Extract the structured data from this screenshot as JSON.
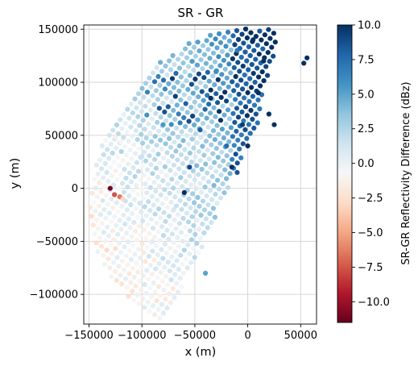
{
  "chart_data": {
    "type": "scatter",
    "title": "SR - GR",
    "xlabel": "x (m)",
    "ylabel": "y (m)",
    "xlim": [
      -155000,
      65000
    ],
    "ylim": [
      -128000,
      154000
    ],
    "xticks": [
      -150000,
      -100000,
      -50000,
      0,
      50000
    ],
    "xtick_labels": [
      "−150000",
      "−100000",
      "−50000",
      "0",
      "50000"
    ],
    "yticks": [
      -100000,
      -50000,
      0,
      50000,
      100000,
      150000
    ],
    "ytick_labels": [
      "−100000",
      "−50000",
      "0",
      "50000",
      "100000",
      "150000"
    ],
    "grid": true,
    "colormap": "RdBu",
    "colorbar": {
      "label": "SR-GR Reflectivity Difference (dBz)",
      "vmin": -11.5,
      "vmax": 10.0,
      "ticks": [
        10.0,
        7.5,
        5.0,
        2.5,
        0.0,
        -2.5,
        -5.0,
        -7.5,
        -10.0
      ],
      "tick_labels": [
        "10.0",
        "7.5",
        "5.0",
        "2.5",
        "0.0",
        "−2.5",
        "−5.0",
        "−7.5",
        "−10.0"
      ]
    },
    "points": [
      [
        -130000,
        0,
        -11.0
      ],
      [
        -126000,
        -6000,
        -7.5
      ],
      [
        -121000,
        -8000,
        -6.5
      ],
      [
        -118000,
        -10000,
        -3.0
      ],
      [
        -125000,
        48000,
        -1.5
      ],
      [
        -120000,
        44000,
        -1.0
      ],
      [
        -60000,
        -4000,
        10.0
      ],
      [
        -55000,
        20000,
        9.0
      ],
      [
        -35000,
        85000,
        10.0
      ],
      [
        -20000,
        40000,
        7.5
      ],
      [
        -15000,
        20000,
        10.0
      ],
      [
        -10000,
        15000,
        8.5
      ],
      [
        -90000,
        -50000,
        0.5
      ],
      [
        -70000,
        -20000,
        1.0
      ],
      [
        -40000,
        -80000,
        5.0
      ],
      [
        -100000,
        30000,
        1.5
      ],
      [
        -80000,
        60000,
        5.5
      ],
      [
        -45000,
        55000,
        8.0
      ],
      [
        -30000,
        110000,
        6.0
      ],
      [
        -10000,
        130000,
        7.0
      ],
      [
        5000,
        140000,
        10.0
      ],
      [
        15000,
        120000,
        10.0
      ],
      [
        10000,
        90000,
        10.0
      ],
      [
        20000,
        70000,
        10.0
      ],
      [
        25000,
        60000,
        10.0
      ],
      [
        -5000,
        60000,
        9.5
      ],
      [
        0,
        40000,
        10.0
      ],
      [
        53000,
        118000,
        10.0
      ],
      [
        56000,
        123000,
        10.0
      ]
    ]
  }
}
